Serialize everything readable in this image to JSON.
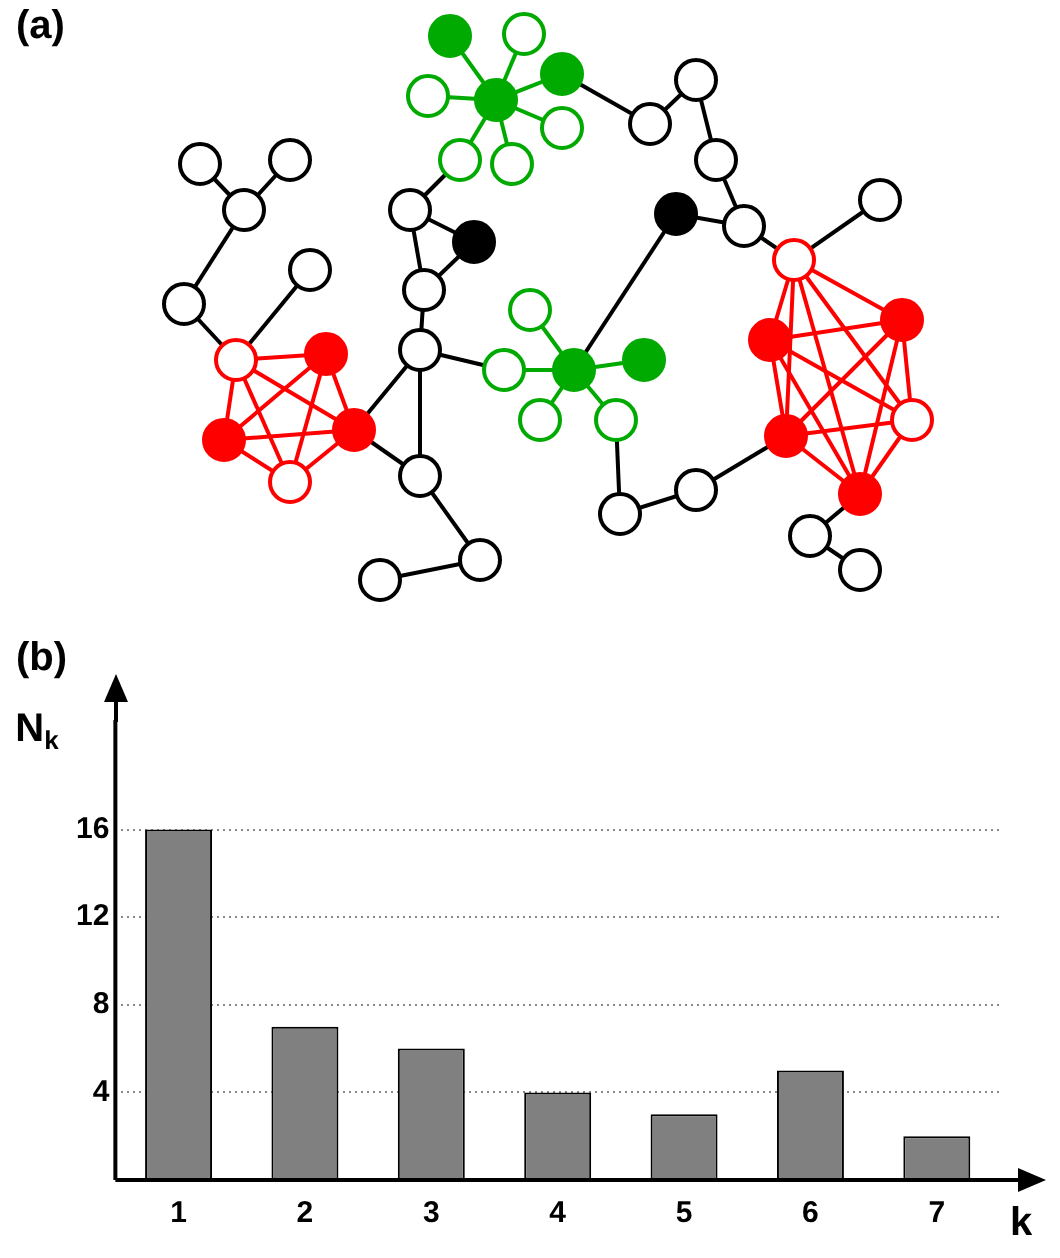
{
  "chart_data": {
    "type": "bar",
    "categories": [
      "1",
      "2",
      "3",
      "4",
      "5",
      "6",
      "7"
    ],
    "values": [
      16,
      7,
      6,
      4,
      3,
      5,
      2
    ],
    "color": "#808080",
    "ylim": [
      0,
      21
    ],
    "yticks": [
      4,
      8,
      12,
      16
    ],
    "grid": "y",
    "xlabel": "k",
    "ylabel": "N$_{k}$",
    "legend": false,
    "annotations": [
      "(a)",
      "(b)"
    ]
  }
}
